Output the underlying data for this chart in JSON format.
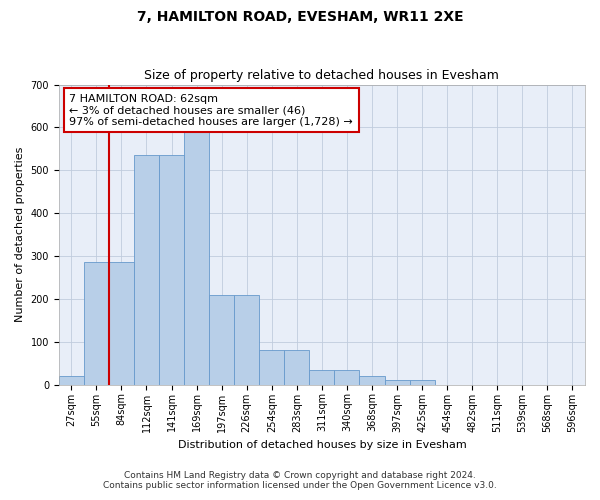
{
  "title": "7, HAMILTON ROAD, EVESHAM, WR11 2XE",
  "subtitle": "Size of property relative to detached houses in Evesham",
  "xlabel": "Distribution of detached houses by size in Evesham",
  "ylabel": "Number of detached properties",
  "bar_labels": [
    "27sqm",
    "55sqm",
    "84sqm",
    "112sqm",
    "141sqm",
    "169sqm",
    "197sqm",
    "226sqm",
    "254sqm",
    "283sqm",
    "311sqm",
    "340sqm",
    "368sqm",
    "397sqm",
    "425sqm",
    "454sqm",
    "482sqm",
    "511sqm",
    "539sqm",
    "568sqm",
    "596sqm"
  ],
  "bar_values": [
    20,
    285,
    285,
    535,
    535,
    590,
    210,
    210,
    80,
    80,
    35,
    35,
    20,
    10,
    10,
    0,
    0,
    0,
    0,
    0,
    0
  ],
  "bar_color": "#b8cfe8",
  "bar_edge_color": "#6699cc",
  "vline_color": "#cc0000",
  "annotation_line1": "7 HAMILTON ROAD: 62sqm",
  "annotation_line2": "← 3% of detached houses are smaller (46)",
  "annotation_line3": "97% of semi-detached houses are larger (1,728) →",
  "annotation_box_color": "#ffffff",
  "annotation_box_edge": "#cc0000",
  "ylim": [
    0,
    700
  ],
  "yticks": [
    0,
    100,
    200,
    300,
    400,
    500,
    600,
    700
  ],
  "footer1": "Contains HM Land Registry data © Crown copyright and database right 2024.",
  "footer2": "Contains public sector information licensed under the Open Government Licence v3.0.",
  "plot_bg_color": "#e8eef8",
  "title_fontsize": 10,
  "subtitle_fontsize": 9,
  "axis_label_fontsize": 8,
  "tick_fontsize": 7,
  "annotation_fontsize": 8,
  "footer_fontsize": 6.5
}
